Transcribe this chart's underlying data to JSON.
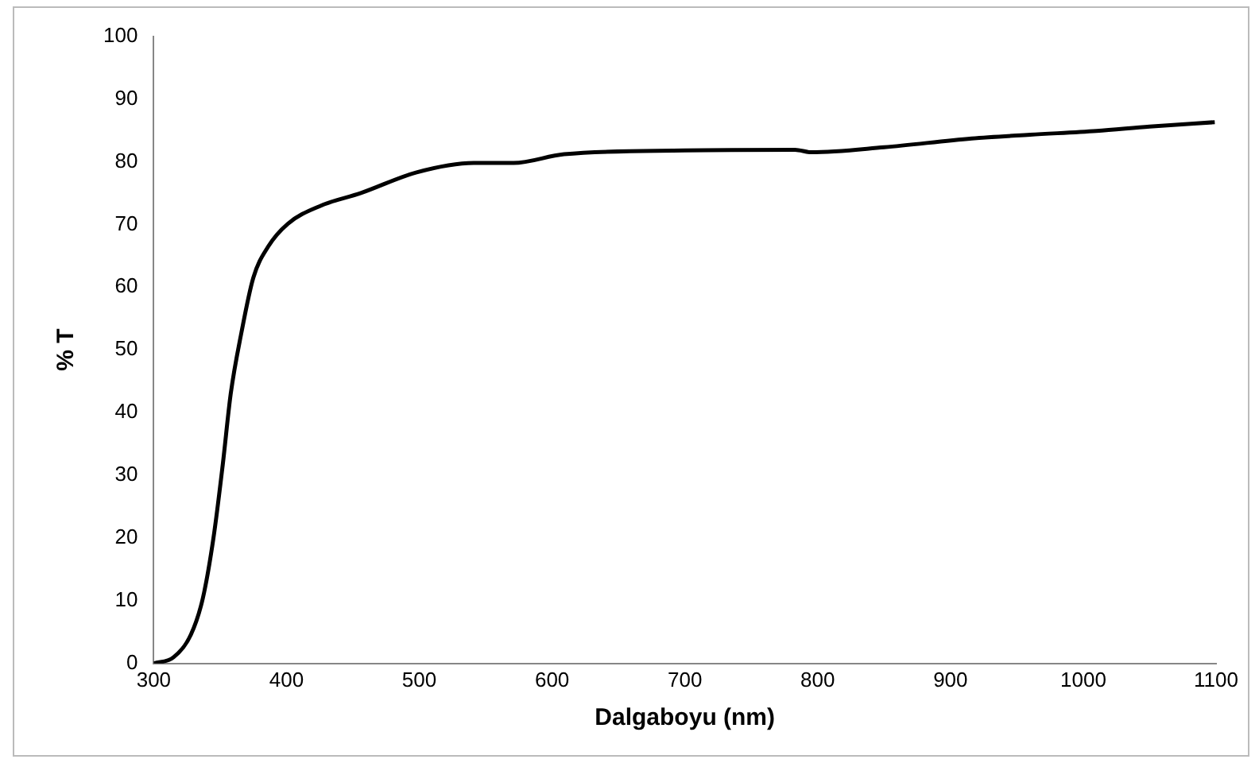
{
  "chart_data": {
    "type": "line",
    "xlabel": "Dalgaboyu (nm)",
    "ylabel": "% T",
    "x": [
      300,
      315,
      328,
      337,
      345,
      352,
      358,
      366,
      375,
      386,
      401,
      426,
      456,
      498,
      541,
      571,
      609,
      700,
      783,
      795,
      850,
      916,
      960,
      1010,
      1050,
      1099
    ],
    "series": [
      {
        "color": "#000000",
        "values": [
          0,
          1,
          4.6,
          10.4,
          20,
          31.7,
          43,
          52.7,
          61.5,
          66.4,
          70.1,
          73,
          75,
          78.3,
          79.8,
          79.8,
          81.2,
          81.8,
          81.9,
          81.5,
          82.3,
          83.7,
          84.3,
          84.9,
          85.6,
          86.3
        ]
      }
    ],
    "xlim": [
      300,
      1100
    ],
    "xticks": [
      300,
      400,
      500,
      600,
      700,
      800,
      900,
      1000,
      1100
    ],
    "ylim": [
      0,
      100
    ],
    "yticks": [
      0,
      10,
      20,
      30,
      40,
      50,
      60,
      70,
      80,
      90,
      100
    ],
    "grid": false,
    "legend": false,
    "marker": "none",
    "line_style": "solid"
  }
}
